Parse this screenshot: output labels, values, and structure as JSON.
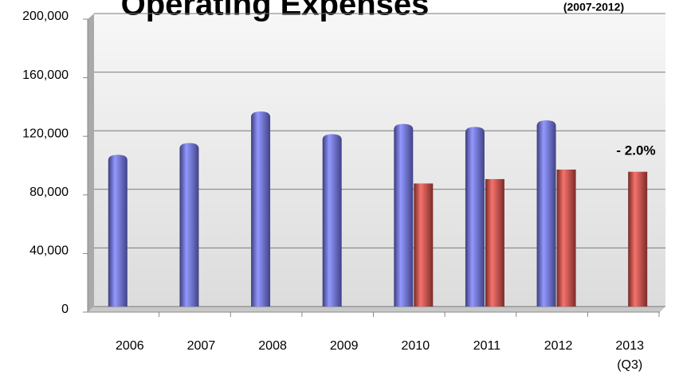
{
  "chart_data": {
    "type": "bar",
    "title": "Operating Expenses",
    "subtitle": "(2007-2012)",
    "annotation": "- 2.0%",
    "categories": [
      "2006",
      "2007",
      "2008",
      "2009",
      "2010",
      "2011",
      "2012",
      "2013 (Q3)"
    ],
    "series": [
      {
        "color": "#6b70e0",
        "values": [
          102000,
          110000,
          131500,
          116000,
          123000,
          121000,
          125500,
          null
        ]
      },
      {
        "color": "#cf4a44",
        "values": [
          null,
          null,
          null,
          null,
          84000,
          87000,
          93500,
          92000
        ]
      }
    ],
    "ylim": [
      0,
      200000
    ],
    "yticks": [
      0,
      {
        "value": 40000,
        "label": "40,000"
      },
      {
        "value": 80000,
        "label": "80,000"
      },
      {
        "value": 120000,
        "label": "120,000"
      },
      {
        "value": 160000,
        "label": "160,000"
      },
      {
        "value": 200000,
        "label": "200,000"
      }
    ],
    "grid": true
  }
}
